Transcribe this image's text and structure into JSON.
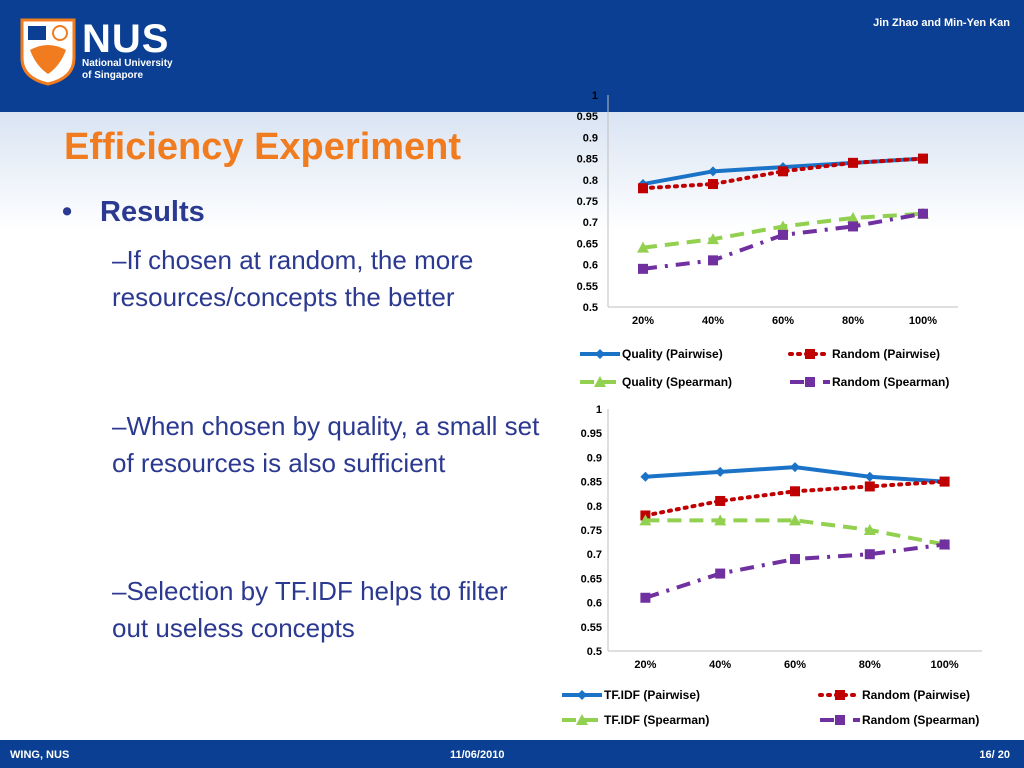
{
  "header": {
    "author": "Jin Zhao and Min-Yen Kan",
    "logo_text": "NUS",
    "logo_subtitle_1": "National University",
    "logo_subtitle_2": "of Singapore"
  },
  "slide": {
    "title": "Efficiency Experiment",
    "bullet": "Results",
    "sub1": "–If chosen at random, the more resources/concepts the better",
    "sub2": "–When chosen by quality, a small set of resources is also sufficient",
    "sub3": "–Selection by TF.IDF helps to filter out useless concepts"
  },
  "footer": {
    "left": "WING, NUS",
    "date": "11/06/2010",
    "page": "16/ 20"
  },
  "chart_data": [
    {
      "type": "line",
      "categories": [
        "20%",
        "40%",
        "60%",
        "80%",
        "100%"
      ],
      "yticks": [
        "0.5",
        "0.55",
        "0.6",
        "0.65",
        "0.7",
        "0.75",
        "0.8",
        "0.85",
        "0.9",
        "0.95",
        "1"
      ],
      "ylim": [
        0.5,
        1.0
      ],
      "legend_position": "bottom",
      "series": [
        {
          "name": "Quality (Pairwise)",
          "values": [
            0.79,
            0.82,
            0.83,
            0.84,
            0.85
          ],
          "color": "#1a73c6",
          "style": "solid",
          "marker": "diamond"
        },
        {
          "name": "Random (Pairwise)",
          "values": [
            0.78,
            0.79,
            0.82,
            0.84,
            0.85
          ],
          "color": "#c00000",
          "style": "dotted",
          "marker": "square"
        },
        {
          "name": "Quality (Spearman)",
          "values": [
            0.64,
            0.66,
            0.69,
            0.71,
            0.72
          ],
          "color": "#92d050",
          "style": "dashed",
          "marker": "triangle"
        },
        {
          "name": "Random (Spearman)",
          "values": [
            0.59,
            0.61,
            0.67,
            0.69,
            0.72
          ],
          "color": "#7030a0",
          "style": "dashdot",
          "marker": "square"
        }
      ]
    },
    {
      "type": "line",
      "categories": [
        "20%",
        "40%",
        "60%",
        "80%",
        "100%"
      ],
      "yticks": [
        "0.5",
        "0.55",
        "0.6",
        "0.65",
        "0.7",
        "0.75",
        "0.8",
        "0.85",
        "0.9",
        "0.95",
        "1"
      ],
      "ylim": [
        0.5,
        1.0
      ],
      "legend_position": "bottom",
      "series": [
        {
          "name": "TF.IDF (Pairwise)",
          "values": [
            0.86,
            0.87,
            0.88,
            0.86,
            0.85
          ],
          "color": "#1a73c6",
          "style": "solid",
          "marker": "diamond"
        },
        {
          "name": "Random (Pairwise)",
          "values": [
            0.78,
            0.81,
            0.83,
            0.84,
            0.85
          ],
          "color": "#c00000",
          "style": "dotted",
          "marker": "square"
        },
        {
          "name": "TF.IDF (Spearman)",
          "values": [
            0.77,
            0.77,
            0.77,
            0.75,
            0.72
          ],
          "color": "#92d050",
          "style": "dashed",
          "marker": "triangle"
        },
        {
          "name": "Random (Spearman)",
          "values": [
            0.61,
            0.66,
            0.69,
            0.7,
            0.72
          ],
          "color": "#7030a0",
          "style": "dashdot",
          "marker": "square"
        }
      ]
    }
  ]
}
